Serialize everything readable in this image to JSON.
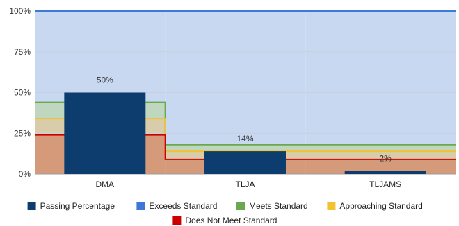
{
  "chart_data": {
    "type": "bar",
    "categories": [
      "DMA",
      "TLJA",
      "TLJAMS"
    ],
    "series": [
      {
        "name": "Passing Percentage",
        "values": [
          50,
          14,
          2
        ],
        "data_labels": [
          "50%",
          "14%",
          "2%"
        ],
        "color": "#0d3c6e"
      }
    ],
    "background_bands": [
      {
        "name": "Exceeds Standard",
        "color": "#3c78d8",
        "tops": [
          100,
          100,
          100
        ]
      },
      {
        "name": "Meets Standard",
        "color": "#6aa84f",
        "tops": [
          44,
          18,
          18
        ]
      },
      {
        "name": "Approaching Standard",
        "color": "#f1c232",
        "tops": [
          34,
          14,
          14
        ]
      },
      {
        "name": "Does Not Meet Standard",
        "color": "#cc0000",
        "tops": [
          24,
          9,
          9
        ]
      }
    ],
    "y_axis": {
      "min": 0,
      "max": 100,
      "ticks": [
        0,
        25,
        50,
        75,
        100
      ],
      "tick_labels": [
        "0%",
        "25%",
        "50%",
        "75%",
        "100%"
      ]
    },
    "title": "",
    "xlabel": "",
    "ylabel": "",
    "grid": true,
    "legend_position": "bottom",
    "legend": [
      {
        "name": "Passing Percentage",
        "color": "#0d3c6e"
      },
      {
        "name": "Exceeds Standard",
        "color": "#3c78d8"
      },
      {
        "name": "Meets Standard",
        "color": "#6aa84f"
      },
      {
        "name": "Approaching Standard",
        "color": "#f1c232"
      },
      {
        "name": "Does Not Meet Standard",
        "color": "#cc0000"
      }
    ]
  }
}
